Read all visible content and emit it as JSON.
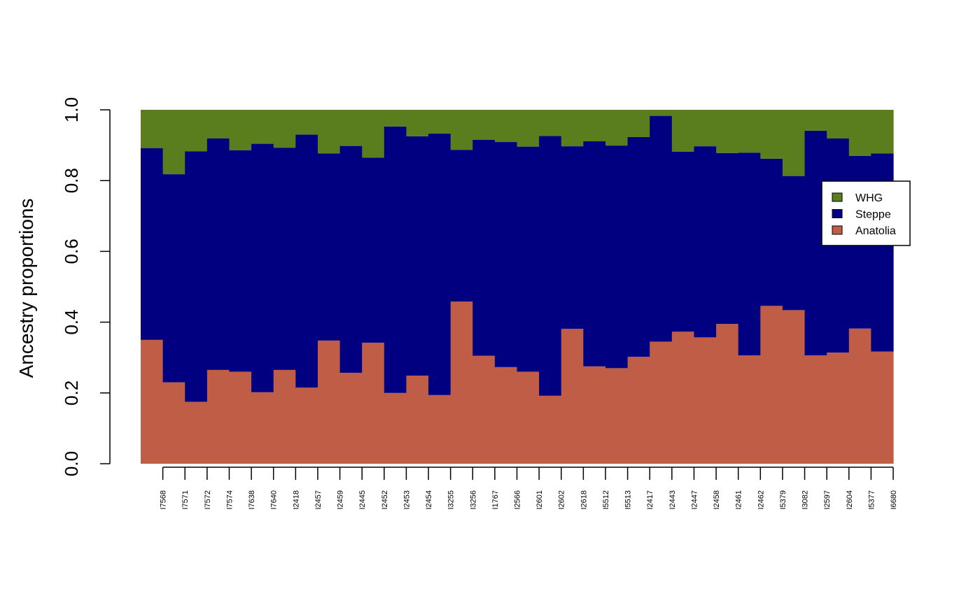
{
  "chart_data": {
    "type": "bar",
    "stacked": true,
    "ylabel": "Ancestry proportions",
    "ylim": [
      0,
      1
    ],
    "yticks": [
      "0.0",
      "0.2",
      "0.4",
      "0.6",
      "0.8",
      "1.0"
    ],
    "categories": [
      "I7568",
      "I7571",
      "I7572",
      "I7574",
      "I7638",
      "I7640",
      "I2418",
      "I2457",
      "I2459",
      "I2445",
      "I2452",
      "I2453",
      "I2454",
      "I3255",
      "I3256",
      "I1767",
      "I2566",
      "I2601",
      "I2602",
      "I2618",
      "I5512",
      "I5513",
      "I2417",
      "I2443",
      "I2447",
      "I2458",
      "I2461",
      "I2462",
      "I5379",
      "I3082",
      "I2597",
      "I2604",
      "I5377",
      "I6680"
    ],
    "series": [
      {
        "name": "Anatolia",
        "color": "#C05D46",
        "values": [
          0.35,
          0.23,
          0.175,
          0.265,
          0.26,
          0.202,
          0.265,
          0.215,
          0.348,
          0.257,
          0.342,
          0.2,
          0.249,
          0.194,
          0.458,
          0.305,
          0.273,
          0.26,
          0.192,
          0.381,
          0.275,
          0.27,
          0.302,
          0.345,
          0.373,
          0.357,
          0.395,
          0.306,
          0.446,
          0.434,
          0.306,
          0.314,
          0.382,
          0.317
        ]
      },
      {
        "name": "Steppe",
        "color": "#000080",
        "values": [
          0.542,
          0.588,
          0.708,
          0.654,
          0.626,
          0.702,
          0.628,
          0.715,
          0.529,
          0.641,
          0.523,
          0.753,
          0.676,
          0.739,
          0.429,
          0.61,
          0.636,
          0.636,
          0.734,
          0.516,
          0.636,
          0.629,
          0.621,
          0.638,
          0.509,
          0.54,
          0.483,
          0.573,
          0.416,
          0.379,
          0.635,
          0.605,
          0.488,
          0.56
        ]
      },
      {
        "name": "WHG",
        "color": "#5A7E1E",
        "values": [
          0.108,
          0.182,
          0.117,
          0.081,
          0.114,
          0.096,
          0.107,
          0.07,
          0.123,
          0.102,
          0.135,
          0.047,
          0.075,
          0.067,
          0.113,
          0.085,
          0.091,
          0.104,
          0.074,
          0.103,
          0.089,
          0.101,
          0.077,
          0.017,
          0.118,
          0.103,
          0.122,
          0.121,
          0.138,
          0.187,
          0.059,
          0.081,
          0.13,
          0.123
        ]
      }
    ],
    "legend": {
      "position": "right",
      "entries": [
        "WHG",
        "Steppe",
        "Anatolia"
      ]
    },
    "grid": false
  }
}
